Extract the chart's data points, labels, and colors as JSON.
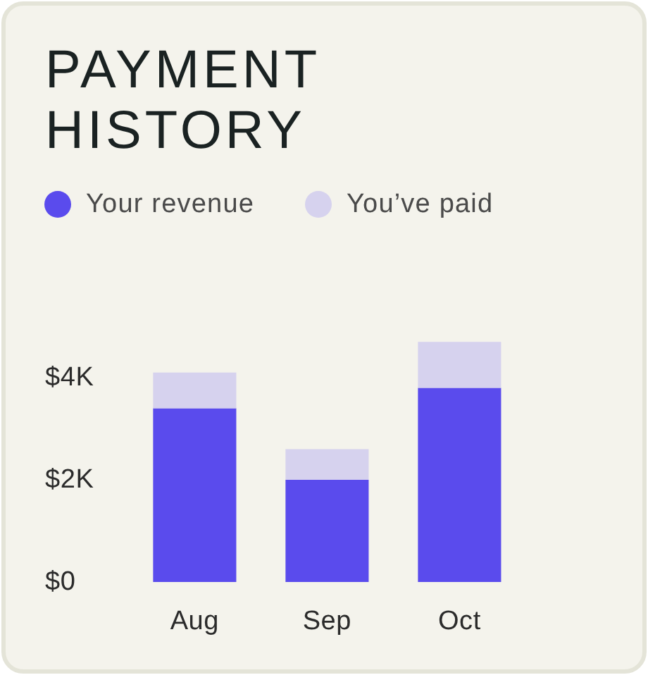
{
  "chart_data": {
    "type": "bar",
    "title": "PAYMENT HISTORY",
    "categories": [
      "Aug",
      "Sep",
      "Oct"
    ],
    "series": [
      {
        "name": "Your revenue",
        "color": "#5a4bed",
        "values": [
          3400,
          2000,
          3800
        ]
      },
      {
        "name": "You’ve paid",
        "color": "#d6d2ee",
        "values": [
          700,
          600,
          900
        ]
      }
    ],
    "stacked": true,
    "ylim": [
      0,
      4700
    ],
    "yticks": [
      {
        "value": 0,
        "label": "$0"
      },
      {
        "value": 2000,
        "label": "$2K"
      },
      {
        "value": 4000,
        "label": "$4K"
      }
    ],
    "legend": "top left"
  }
}
